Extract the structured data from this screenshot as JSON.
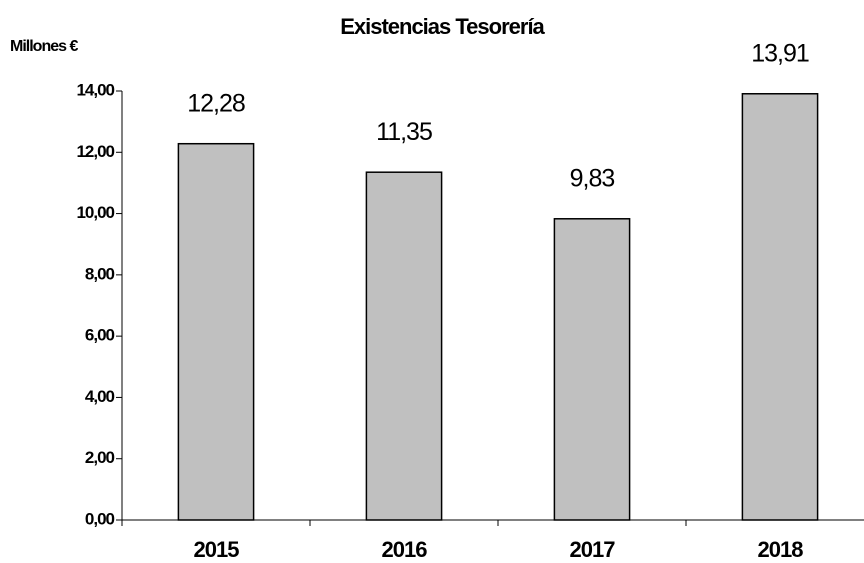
{
  "chart_data": {
    "type": "bar",
    "title": "Existencias Tesorería",
    "y_label": "Millones €",
    "categories": [
      "2015",
      "2016",
      "2017",
      "2018"
    ],
    "values": [
      12.28,
      11.35,
      9.83,
      13.91
    ],
    "value_labels": [
      "12,28",
      "11,35",
      "9,83",
      "13,91"
    ],
    "color": "#c0c0c0",
    "ylim": [
      0,
      14
    ],
    "yticks": [
      {
        "value": 0,
        "label": "0,00"
      },
      {
        "value": 2,
        "label": "2,00"
      },
      {
        "value": 4,
        "label": "4,00"
      },
      {
        "value": 6,
        "label": "6,00"
      },
      {
        "value": 8,
        "label": "8,00"
      },
      {
        "value": 10,
        "label": "10,00"
      },
      {
        "value": 12,
        "label": "12,00"
      },
      {
        "value": 14,
        "label": "14,00"
      }
    ],
    "grid": false
  }
}
